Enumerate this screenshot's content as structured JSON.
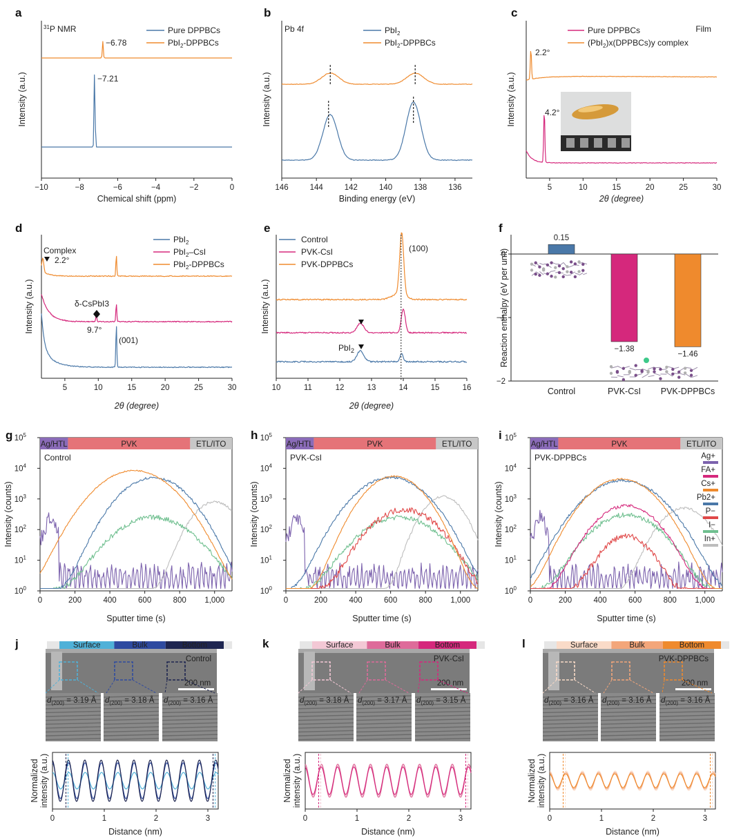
{
  "colors": {
    "blue": "#4a78a8",
    "orange": "#ef8a2d",
    "magenta": "#d5287c",
    "purple": "#7c62ad",
    "green": "#6fbf8f",
    "red": "#e04848",
    "gray": "#bdbdbd",
    "light_blue": "#4fb1d8",
    "mid_blue": "#2e4aa0",
    "navy": "#1e2550",
    "pink_light": "#f3c8d5",
    "pink_mid": "#de6b9a",
    "peach": "#fadbc8",
    "salmon": "#f3a67a",
    "ag_htl": "#8a6bb8",
    "pvk": "#e57378",
    "etl_ito": "#c7c7c7"
  },
  "panels": {
    "a": {
      "label": "a",
      "tag": "31P NMR",
      "xlabel": "Chemical shift (ppm)",
      "ylabel": "Intensity (a.u.)",
      "legend": [
        "Pure DPPBCs",
        "PbI2-DPPBCs"
      ],
      "peak_top": "−6.78",
      "peak_bottom": "−7.21"
    },
    "b": {
      "label": "b",
      "tag": "Pb 4f",
      "xlabel": "Binding energy (eV)",
      "ylabel": "Intensity (a.u.)",
      "legend": [
        "PbI2",
        "PbI2-DPPBCs"
      ]
    },
    "c": {
      "label": "c",
      "tag": "Film",
      "xlabel": "2θ (degree)",
      "ylabel": "Intensity (a.u.)",
      "legend": [
        "Pure DPPBCs",
        "(PbI2)x(DPPBCs)y complex"
      ],
      "peak_top": "2.2°",
      "peak_bottom": "4.2°"
    },
    "d": {
      "label": "d",
      "xlabel": "2θ (degree)",
      "ylabel": "Intensity (a.u.)",
      "legend": [
        "PbI2",
        "PbI2–CsI",
        "PbI2-DPPBCs"
      ],
      "complex": "Complex",
      "complex_deg": "2.2°",
      "cspbi3": "δ-CsPbI3",
      "cspbi3_deg": "9.7°",
      "hkl": "(001)"
    },
    "e": {
      "label": "e",
      "xlabel": "2θ (degree)",
      "ylabel": "Intensity (a.u.)",
      "legend": [
        "Control",
        "PVK-CsI",
        "PVK-DPPBCs"
      ],
      "hkl": "(100)",
      "pbi2": "PbI2"
    },
    "f": {
      "label": "f",
      "ylabel": "Reaction enthalpy (eV per unit)"
    },
    "g": {
      "label": "g",
      "sample": "Control"
    },
    "h": {
      "label": "h",
      "sample": "PVK-CsI"
    },
    "i": {
      "label": "i",
      "sample": "PVK-DPPBCs",
      "ions": [
        "Ag+",
        "FA+",
        "Cs+",
        "Pb2+",
        "P−",
        "I−",
        "In+"
      ]
    },
    "j": {
      "label": "j",
      "sample": "Control",
      "d": [
        "3.19 Å",
        "3.18 Å",
        "3.16 Å"
      ]
    },
    "k": {
      "label": "k",
      "sample": "PVK-CsI",
      "d": [
        "3.18 Å",
        "3.17 Å",
        "3.15 Å"
      ]
    },
    "l": {
      "label": "l",
      "sample": "PVK-DPPBCs",
      "d": [
        "3.16 Å",
        "3.16 Å",
        "3.16 Å"
      ]
    },
    "tof": {
      "xlabel": "Sputter time (s)",
      "ylabel": "Intensity (counts)",
      "layers": [
        "Ag/HTL",
        "PVK",
        "ETL/ITO"
      ]
    },
    "tem": {
      "regions": [
        "Surface",
        "Bulk",
        "Bottom"
      ],
      "scale": "200 nm",
      "xlabel": "Distance (nm)",
      "ylabel": "Normalized intensity (a.u.)",
      "dprefix": "d(200) = "
    }
  },
  "chart_data": [
    {
      "panel": "a",
      "type": "line",
      "title": "",
      "xlabel": "Chemical shift (ppm)",
      "ylabel": "Intensity (a.u.)",
      "xlim": [
        -10,
        0
      ],
      "x_reversed": false,
      "xticks": [
        -10,
        -8,
        -6,
        -4,
        -2,
        0
      ],
      "grid": false,
      "legend": "top-right",
      "series": [
        {
          "name": "Pure DPPBCs",
          "peak_x": -7.21
        },
        {
          "name": "PbI2-DPPBCs",
          "peak_x": -6.78
        }
      ]
    },
    {
      "panel": "b",
      "type": "line",
      "xlabel": "Binding energy (eV)",
      "ylabel": "Intensity (a.u.)",
      "xlim": [
        146,
        135
      ],
      "x_reversed": true,
      "xticks": [
        146,
        144,
        142,
        140,
        138,
        136
      ],
      "legend": "top-center",
      "series": [
        {
          "name": "PbI2",
          "peaks_x": [
            143.2,
            138.4
          ]
        },
        {
          "name": "PbI2-DPPBCs",
          "peaks_x": [
            143.2,
            138.3
          ]
        }
      ]
    },
    {
      "panel": "c",
      "type": "line",
      "xlabel": "2θ (degree)",
      "ylabel": "Intensity (a.u.)",
      "xlim": [
        1.5,
        30
      ],
      "xticks": [
        5,
        10,
        15,
        20,
        25,
        30
      ],
      "legend": "top-left",
      "series": [
        {
          "name": "Pure DPPBCs",
          "peak_x": 4.2
        },
        {
          "name": "(PbI2)x(DPPBCs)y complex",
          "peak_x": 2.2
        }
      ]
    },
    {
      "panel": "d",
      "type": "line",
      "xlabel": "2θ (degree)",
      "ylabel": "Intensity (a.u.)",
      "xlim": [
        1.5,
        30
      ],
      "xticks": [
        5,
        10,
        15,
        20,
        25,
        30
      ],
      "legend": "top-right",
      "series": [
        {
          "name": "PbI2",
          "peaks_x": [
            12.7
          ]
        },
        {
          "name": "PbI2–CsI",
          "peaks_x": [
            9.7,
            12.7
          ]
        },
        {
          "name": "PbI2-DPPBCs",
          "peaks_x": [
            2.2,
            12.7
          ]
        }
      ]
    },
    {
      "panel": "e",
      "type": "line",
      "xlabel": "2θ (degree)",
      "ylabel": "Intensity (a.u.)",
      "xlim": [
        10,
        16
      ],
      "xticks": [
        10,
        11,
        12,
        13,
        14,
        15,
        16
      ],
      "legend": "top-left",
      "series": [
        {
          "name": "Control",
          "peaks_x": [
            12.65,
            13.95
          ]
        },
        {
          "name": "PVK-CsI",
          "peaks_x": [
            12.65,
            14.0
          ]
        },
        {
          "name": "PVK-DPPBCs",
          "peaks_x": [
            13.95
          ]
        }
      ]
    },
    {
      "panel": "f",
      "type": "bar",
      "ylabel": "Reaction enthalpy (eV per unit)",
      "ylim": [
        -2,
        0.4
      ],
      "yticks": [
        -2,
        -1,
        0
      ],
      "categories": [
        "Control",
        "PVK-CsI",
        "PVK-DPPBCs"
      ],
      "values": [
        0.15,
        -1.38,
        -1.46
      ],
      "value_labels": [
        "0.15",
        "−1.38",
        "−1.46"
      ]
    },
    {
      "panel": "g",
      "type": "line",
      "xlabel": "Sputter time (s)",
      "ylabel": "Intensity (counts)",
      "y_scale": "log",
      "xlim": [
        0,
        1100
      ],
      "ylim": [
        1,
        100000
      ],
      "xticks": [
        0,
        200,
        400,
        600,
        800,
        "1,000"
      ],
      "series": [
        {
          "name": "Cs+",
          "peak": [
            540,
            8500
          ]
        },
        {
          "name": "Pb2+",
          "peak": [
            650,
            5000
          ]
        },
        {
          "name": "I−",
          "peak": [
            650,
            250
          ]
        },
        {
          "name": "In+",
          "peak": [
            1000,
            800
          ]
        },
        {
          "name": "Ag+",
          "peak": [
            20,
            800
          ]
        }
      ]
    },
    {
      "panel": "h",
      "type": "line",
      "xlabel": "Sputter time (s)",
      "ylabel": "Intensity (counts)",
      "y_scale": "log",
      "xlim": [
        0,
        1100
      ],
      "ylim": [
        1,
        100000
      ],
      "xticks": [
        0,
        200,
        400,
        600,
        800,
        "1,000"
      ],
      "series": [
        {
          "name": "Cs+",
          "peak": [
            620,
            5500
          ]
        },
        {
          "name": "Pb2+",
          "peak": [
            600,
            5000
          ]
        },
        {
          "name": "P−",
          "peak": [
            680,
            450
          ]
        },
        {
          "name": "I−",
          "peak": [
            650,
            250
          ]
        },
        {
          "name": "In+",
          "peak": [
            900,
            1200
          ]
        },
        {
          "name": "Ag+",
          "peak": [
            80,
            300
          ]
        }
      ]
    },
    {
      "panel": "i",
      "type": "line",
      "xlabel": "Sputter time (s)",
      "ylabel": "Intensity (counts)",
      "y_scale": "log",
      "xlim": [
        0,
        1100
      ],
      "ylim": [
        1,
        100000
      ],
      "xticks": [
        0,
        200,
        400,
        600,
        800,
        "1,000"
      ],
      "series": [
        {
          "name": "Cs+",
          "peak": [
            520,
            4500
          ]
        },
        {
          "name": "Pb2+",
          "peak": [
            530,
            4000
          ]
        },
        {
          "name": "FA+",
          "peak": [
            550,
            600
          ]
        },
        {
          "name": "I−",
          "peak": [
            550,
            300
          ]
        },
        {
          "name": "P−",
          "peak": [
            550,
            60
          ]
        },
        {
          "name": "In+",
          "peak": [
            880,
            500
          ]
        },
        {
          "name": "Ag+",
          "peak": [
            80,
            300
          ]
        }
      ]
    },
    {
      "panel": "j",
      "type": "line",
      "xlabel": "Distance (nm)",
      "ylabel": "Normalized intensity (a.u.)",
      "xlim": [
        0,
        3.2
      ],
      "xticks": [
        0,
        1,
        2,
        3
      ],
      "series": [
        {
          "name": "Surface"
        },
        {
          "name": "Bulk"
        },
        {
          "name": "Bottom"
        }
      ]
    },
    {
      "panel": "k",
      "type": "line",
      "xlabel": "Distance (nm)",
      "ylabel": "Normalized intensity (a.u.)",
      "xlim": [
        0,
        3.2
      ],
      "xticks": [
        0,
        1,
        2,
        3
      ],
      "series": [
        {
          "name": "Surface"
        },
        {
          "name": "Bulk"
        },
        {
          "name": "Bottom"
        }
      ]
    },
    {
      "panel": "l",
      "type": "line",
      "xlabel": "Distance (nm)",
      "ylabel": "Normalized intensity (a.u.)",
      "xlim": [
        0,
        3.2
      ],
      "xticks": [
        0,
        1,
        2,
        3
      ],
      "series": [
        {
          "name": "Surface"
        },
        {
          "name": "Bulk"
        },
        {
          "name": "Bottom"
        }
      ]
    }
  ]
}
